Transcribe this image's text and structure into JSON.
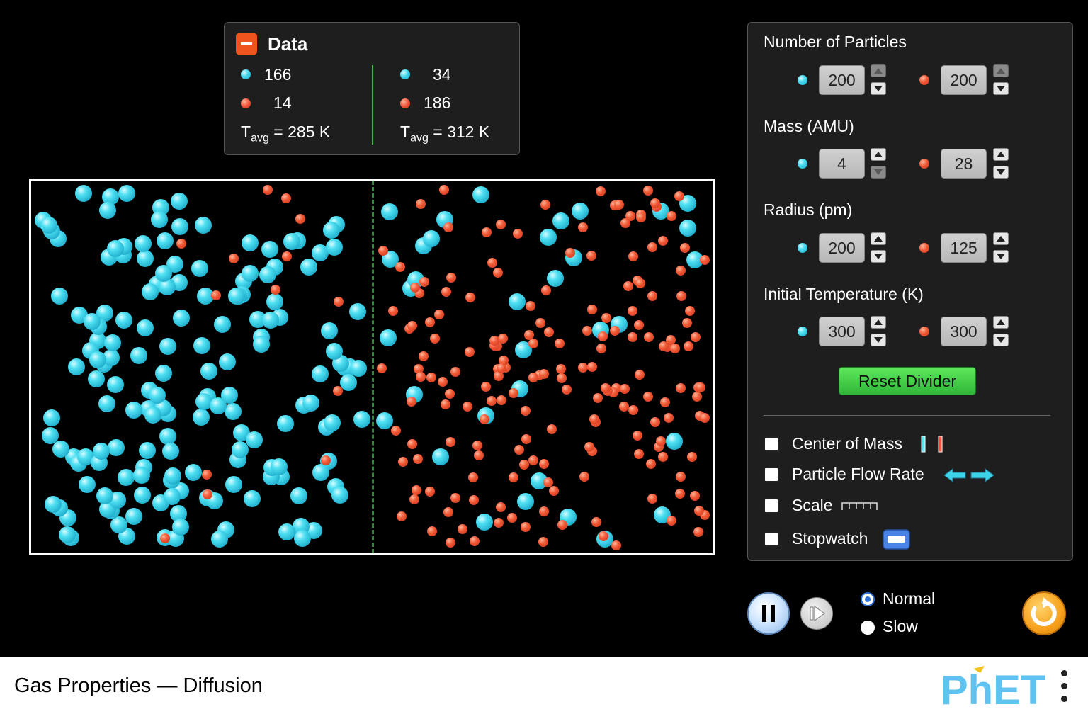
{
  "data_panel": {
    "title": "Data",
    "left": {
      "blue_count": "166",
      "red_count": "14",
      "tavg_prefix": "T",
      "tavg_sub": "avg",
      "tavg_value": " = 285 K"
    },
    "right": {
      "blue_count": "34",
      "red_count": "186",
      "tavg_prefix": "T",
      "tavg_sub": "avg",
      "tavg_value": " = 312 K"
    }
  },
  "controls": {
    "particles": {
      "title": "Number of Particles",
      "blue": "200",
      "red": "200"
    },
    "mass": {
      "title": "Mass (AMU)",
      "blue": "4",
      "red": "28"
    },
    "radius": {
      "title": "Radius (pm)",
      "blue": "200",
      "red": "125"
    },
    "temperature": {
      "title": "Initial Temperature (K)",
      "blue": "300",
      "red": "300"
    },
    "reset_divider": "Reset Divider",
    "checkboxes": {
      "center_of_mass": "Center of Mass",
      "particle_flow_rate": "Particle Flow Rate",
      "scale": "Scale",
      "stopwatch": "Stopwatch"
    }
  },
  "speed": {
    "normal": "Normal",
    "slow": "Slow",
    "selected": "Normal"
  },
  "footer": {
    "title": "Gas Properties — Diffusion",
    "brand": "PhET"
  },
  "colors": {
    "blue_particle": "#3fd3ea",
    "red_particle": "#f0553a",
    "reset_green": "#3cc646",
    "accent_orange": "#f5a623"
  },
  "icons": {
    "data_collapse": "minus-icon",
    "flow_rate": "double-arrow-icon",
    "scale": "ruler-icon",
    "stopwatch": "stopwatch-icon",
    "play_pause": "pause-icon",
    "step": "step-forward-icon",
    "reset_all": "reset-all-icon",
    "menu": "kebab-menu-icon"
  }
}
